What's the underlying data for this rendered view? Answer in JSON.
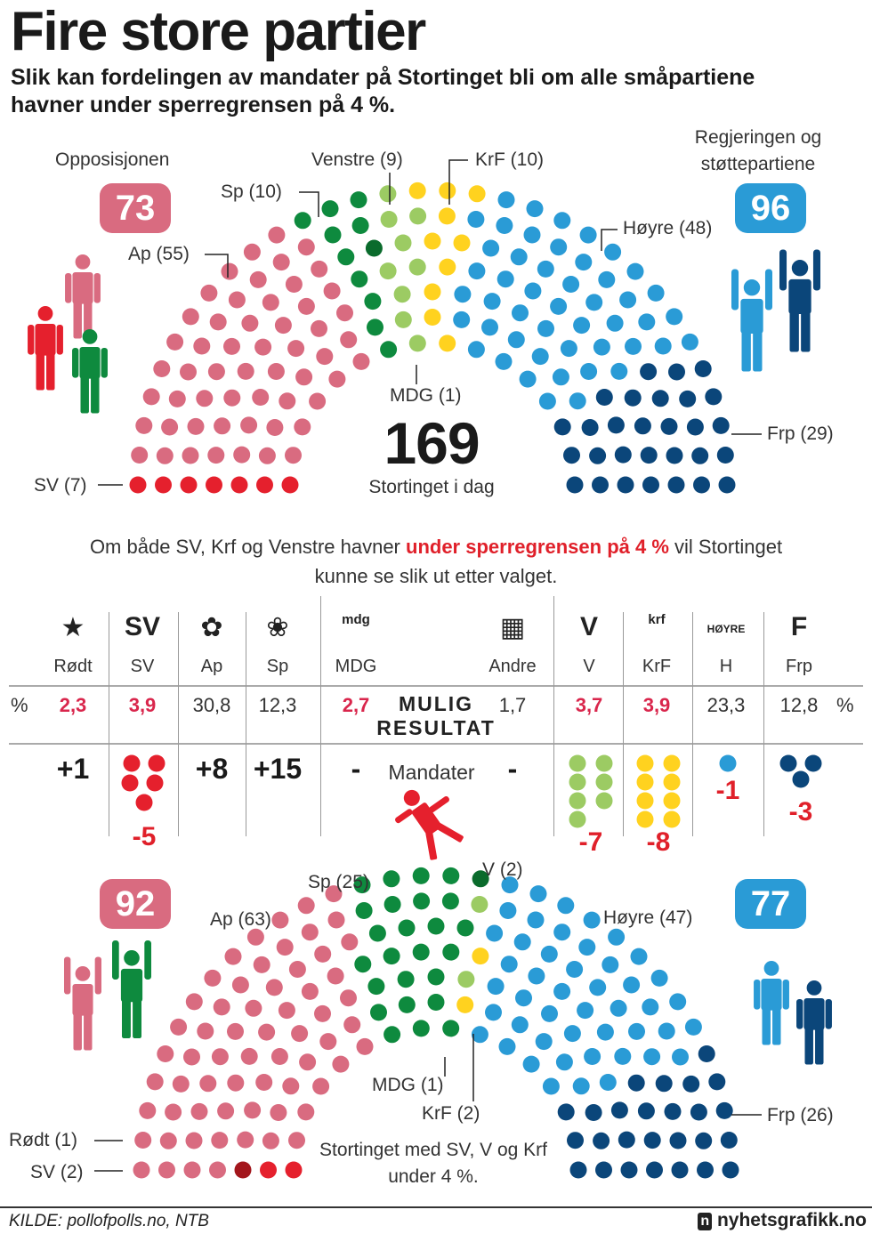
{
  "header": {
    "title": "Fire store partier",
    "subtitle": "Slik kan fordelingen av mandater på Stortinget bli om alle småpartiene havner under sperregrensen på 4 %."
  },
  "colors": {
    "SV": "#e5202d",
    "Rødt": "#a3161c",
    "Ap": "#d96b80",
    "Sp": "#0e8a3e",
    "MDG": "#0a6b2c",
    "V": "#9ccb63",
    "KrF": "#ffd21f",
    "H": "#2a9bd6",
    "Frp": "#0b467a"
  },
  "chart_data": [
    {
      "type": "parliament",
      "caption_number": "169",
      "caption_text": "Stortinget i dag",
      "total": 169,
      "parties": [
        {
          "key": "SV",
          "label": "SV (7)",
          "seats": 7
        },
        {
          "key": "Ap",
          "label": "Ap (55)",
          "seats": 55
        },
        {
          "key": "Sp",
          "label": "Sp (10)",
          "seats": 10
        },
        {
          "key": "MDG",
          "label": "MDG (1)",
          "seats": 1
        },
        {
          "key": "V",
          "label": "Venstre (9)",
          "seats": 9
        },
        {
          "key": "KrF",
          "label": "KrF (10)",
          "seats": 10
        },
        {
          "key": "H",
          "label": "Høyre (48)",
          "seats": 48
        },
        {
          "key": "Frp",
          "label": "Frp (29)",
          "seats": 29
        }
      ],
      "left_group": {
        "label": "Opposisjonen",
        "seats": "73"
      },
      "right_group": {
        "label": "Regjeringen og støttepartiene",
        "seats": "96"
      }
    },
    {
      "type": "table",
      "intro_before": "Om både SV, Krf og Venstre havner ",
      "intro_highlight": "under sperregrensen på 4 %",
      "intro_after": " vil Stortinget kunne se slik ut etter valget.",
      "center_label": "MULIG RESULTAT",
      "seats_label": "Mandater",
      "percent_symbol": "%",
      "columns": [
        {
          "party": "Rødt",
          "logo": "★",
          "percent": "2,3",
          "highlight": true,
          "change": "+1",
          "dots": 0
        },
        {
          "party": "SV",
          "logo": "SV",
          "percent": "3,9",
          "highlight": true,
          "change": "-5",
          "dots": 5
        },
        {
          "party": "Ap",
          "logo": "✿",
          "percent": "30,8",
          "highlight": false,
          "change": "+8",
          "dots": 0
        },
        {
          "party": "Sp",
          "logo": "❀",
          "percent": "12,3",
          "highlight": false,
          "change": "+15",
          "dots": 0
        },
        {
          "party": "MDG",
          "logo": "mdg",
          "percent": "2,7",
          "highlight": true,
          "change": "-",
          "dots": 0
        },
        {
          "party": "Andre",
          "logo": "▦",
          "percent": "1,7",
          "highlight": false,
          "change": "-",
          "dots": 0
        },
        {
          "party": "V",
          "logo": "V",
          "percent": "3,7",
          "highlight": true,
          "change": "-7",
          "dots": 7
        },
        {
          "party": "KrF",
          "logo": "krf",
          "percent": "3,9",
          "highlight": true,
          "change": "-8",
          "dots": 8
        },
        {
          "party": "H",
          "logo": "HØYRE",
          "percent": "23,3",
          "highlight": false,
          "change": "-1",
          "dots": 1
        },
        {
          "party": "Frp",
          "logo": "F",
          "percent": "12,8",
          "highlight": false,
          "change": "-3",
          "dots": 3
        }
      ]
    },
    {
      "type": "parliament",
      "caption_text": "Stortinget med SV, V og Krf under 4 %.",
      "total": 169,
      "parties": [
        {
          "key": "SV",
          "label": "SV (2)",
          "seats": 2
        },
        {
          "key": "Rødt",
          "label": "Rødt (1)",
          "seats": 1
        },
        {
          "key": "Ap",
          "label": "Ap (63)",
          "seats": 63
        },
        {
          "key": "Sp",
          "label": "Sp (25)",
          "seats": 25
        },
        {
          "key": "MDG",
          "label": "MDG (1)",
          "seats": 1
        },
        {
          "key": "V",
          "label": "V (2)",
          "seats": 2
        },
        {
          "key": "KrF",
          "label": "KrF (2)",
          "seats": 2
        },
        {
          "key": "H",
          "label": "Høyre (47)",
          "seats": 47
        },
        {
          "key": "Frp",
          "label": "Frp (26)",
          "seats": 26
        }
      ],
      "left_group": {
        "seats": "92"
      },
      "right_group": {
        "seats": "77"
      }
    }
  ],
  "footer": {
    "source": "KILDE: pollofpolls.no, NTB",
    "brand": "nyhetsgrafikk.no"
  }
}
